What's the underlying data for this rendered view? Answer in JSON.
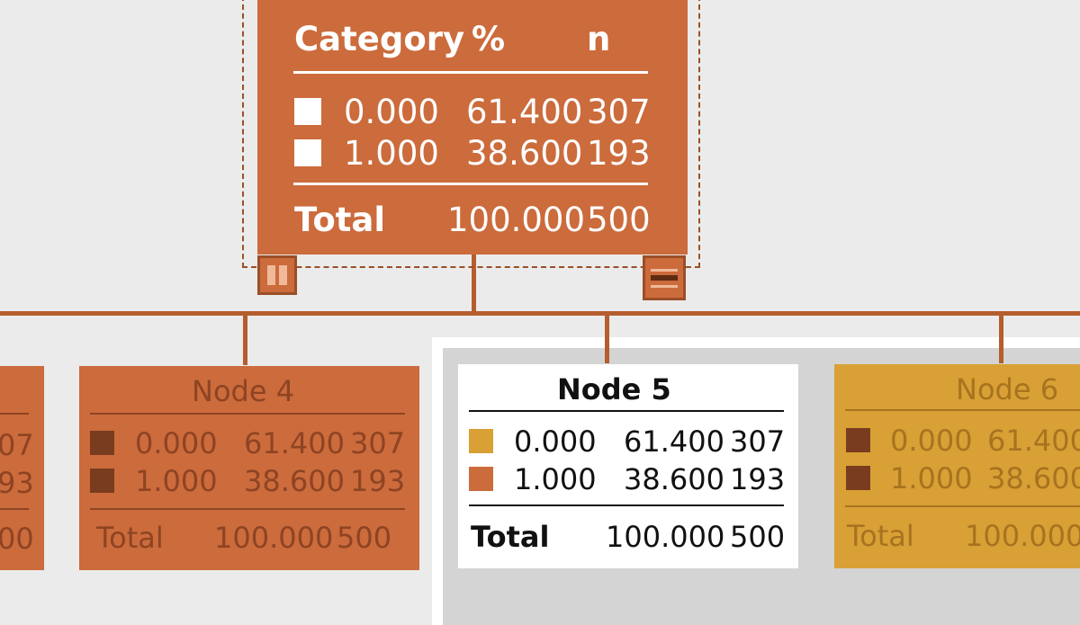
{
  "root": {
    "headers": {
      "category": "Category",
      "percent": "%",
      "n": "n"
    },
    "rows": [
      {
        "category": "0.000",
        "percent": "61.400",
        "n": "307"
      },
      {
        "category": "1.000",
        "percent": "38.600",
        "n": "193"
      }
    ],
    "total": {
      "label": "Total",
      "percent": "100.000",
      "n": "500"
    }
  },
  "node_left_partial": {
    "rows": [
      {
        "n_tail": "07"
      },
      {
        "n_tail": "93"
      }
    ],
    "total_tail": "00"
  },
  "node4": {
    "title": "Node 4",
    "rows": [
      {
        "category": "0.000",
        "percent": "61.400",
        "n": "307"
      },
      {
        "category": "1.000",
        "percent": "38.600",
        "n": "193"
      }
    ],
    "total": {
      "label": "Total",
      "percent": "100.000",
      "n": "500"
    }
  },
  "node5": {
    "title": "Node 5",
    "rows": [
      {
        "category": "0.000",
        "percent": "61.400",
        "n": "307"
      },
      {
        "category": "1.000",
        "percent": "38.600",
        "n": "193"
      }
    ],
    "total": {
      "label": "Total",
      "percent": "100.000",
      "n": "500"
    }
  },
  "node6": {
    "title": "Node 6",
    "rows": [
      {
        "category": "0.000",
        "percent_partial": "61.400"
      },
      {
        "category": "1.000",
        "percent_partial": "38.600"
      }
    ],
    "total": {
      "label": "Total",
      "percent_partial": "100.000"
    }
  },
  "colors": {
    "background": "#ebebeb",
    "node_orange": "#cc6b3c",
    "node_gold": "#d8a035",
    "connector": "#b55d2e",
    "dim_text_orange": "#8e4423",
    "dim_text_gold": "#a8731f",
    "swatch_dark": "#7a3c1e"
  }
}
